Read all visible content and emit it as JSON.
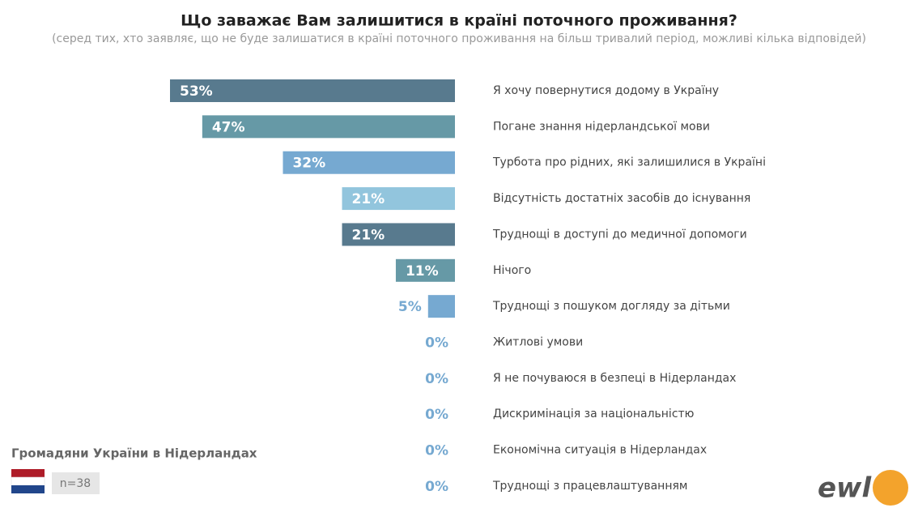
{
  "chart_data": {
    "type": "bar",
    "title": "Що заважає Вам залишитися в країні поточного проживання?",
    "subtitle": "(серед тих, хто заявляє, що не буде залишатися в країні поточного проживання на більш тривалий період, можливі кілька відповідей)",
    "categories": [
      "Я хочу повернутися додому в Україну",
      "Погане знання нідерландської мови",
      "Турбота про рідних, які залишилися в Україні",
      "Відсутність достатніх засобів до існування",
      "Труднощі в доступі до медичної допомоги",
      "Нічого",
      "Труднощі з пошуком догляду за дітьми",
      "Житлові умови",
      "Я не почуваюся в безпеці в Нідерландах",
      "Дискримінація за національністю",
      "Економічна ситуація в Нідерландах",
      "Труднощі з працевлаштуванням"
    ],
    "values": [
      53,
      47,
      32,
      21,
      21,
      11,
      5,
      0,
      0,
      0,
      0,
      0
    ],
    "value_labels": [
      "53%",
      "47%",
      "32%",
      "21%",
      "21%",
      "11%",
      "5%",
      "0%",
      "0%",
      "0%",
      "0%",
      "0%"
    ],
    "colors": [
      "#587a8e",
      "#6699a6",
      "#76a9d1",
      "#92c5dd",
      "#587a8e",
      "#6699a6",
      "#76a9d1",
      "#76a9d1",
      "#76a9d1",
      "#76a9d1",
      "#76a9d1",
      "#76a9d1"
    ],
    "group": "Громадяни України в Нідерландах",
    "sample": "n=38",
    "logo": "ewl"
  }
}
